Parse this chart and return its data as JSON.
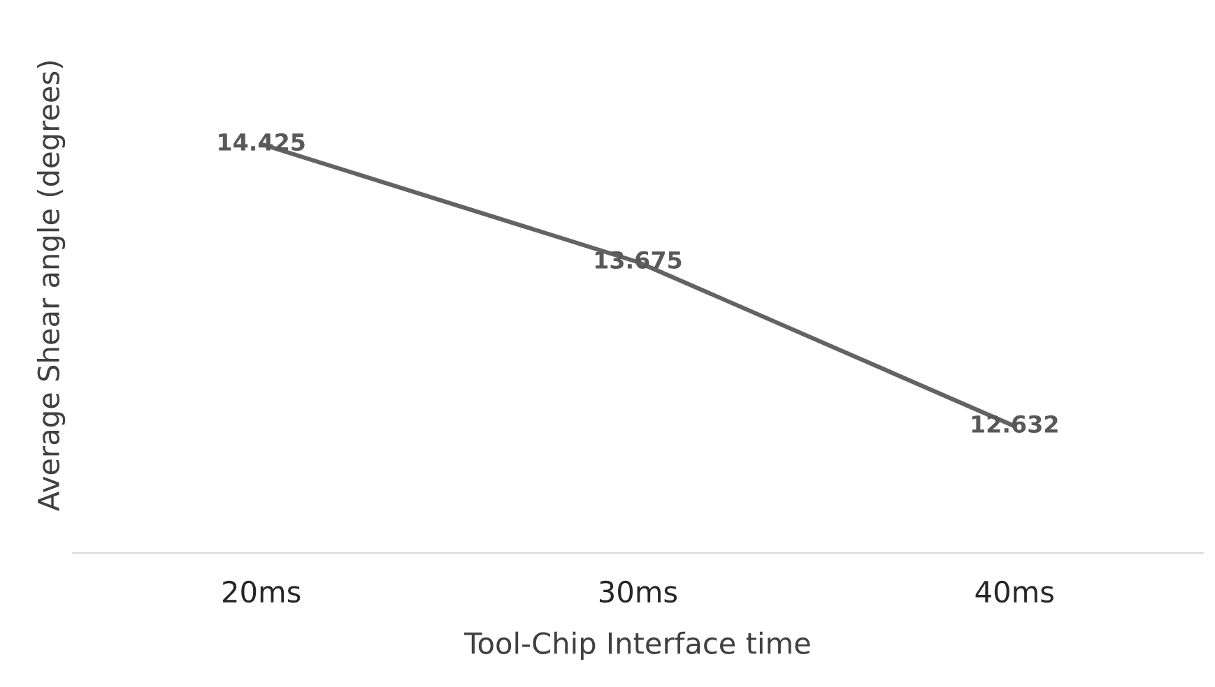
{
  "chart_data": {
    "type": "line",
    "xlabel": "Tool-Chip Interface time",
    "ylabel": "Average Shear angle (degrees)",
    "categories": [
      "20ms",
      "30ms",
      "40ms"
    ],
    "series": [
      {
        "color": "#636363",
        "values": [
          14.425,
          13.675,
          12.632
        ]
      }
    ],
    "data_labels": true,
    "tick_labels": "x",
    "grid": false,
    "legend": false,
    "line_style": "solid"
  }
}
